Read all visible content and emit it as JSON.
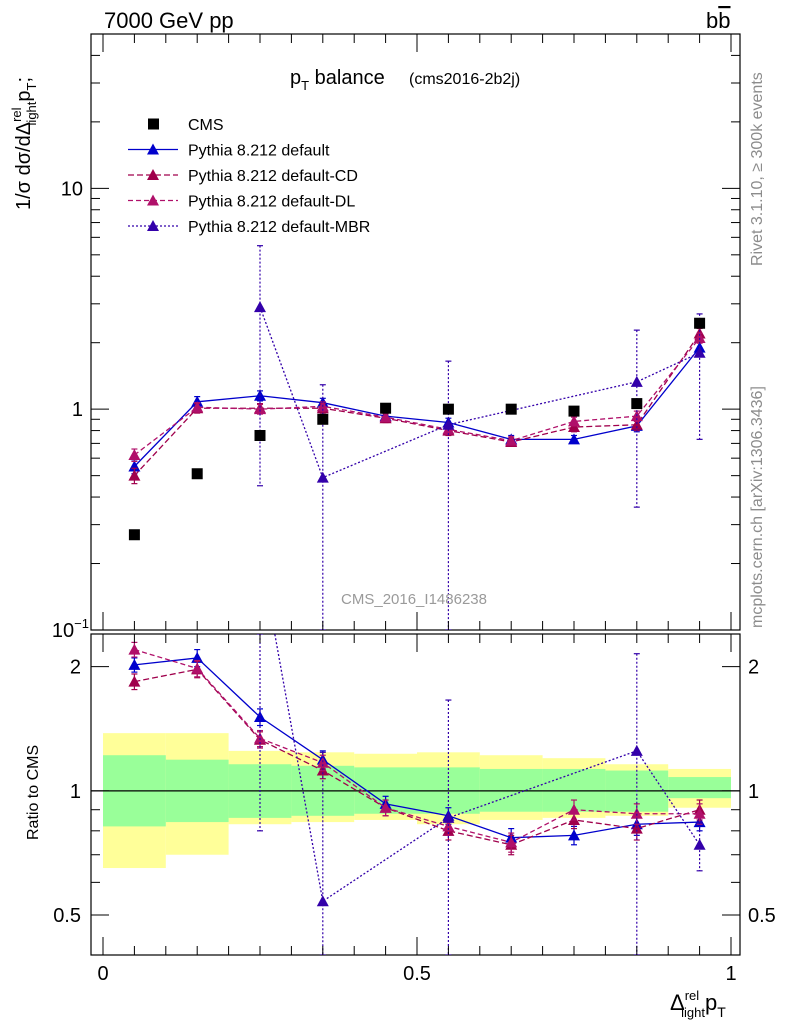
{
  "header": {
    "left_label": "7000 GeV pp",
    "right_label": "b",
    "right_label_bar": "b"
  },
  "side_labels": {
    "rivet": "Rivet 3.1.10, ≥ 300k events",
    "mcplots": "mcplots.cern.ch [arXiv:1306.3436]"
  },
  "analysis_id": "CMS_2016_I1486238",
  "title": {
    "main": "p",
    "main_sub": "T",
    "main_rest": " balance",
    "tag": "(cms2016-2b2j)"
  },
  "ylabel_main": {
    "prefix": "1/σ dσ/dΔ",
    "sup": "rel",
    "sub": "light",
    "p": "p",
    "psub": "T",
    "end": ";"
  },
  "ylabel_ratio": "Ratio to CMS",
  "xlabel": {
    "delta": "Δ",
    "sup": "rel",
    "sub": "light",
    "p": "p",
    "psub": "T"
  },
  "main_ticks": [
    {
      "value": 10,
      "label": "10"
    },
    {
      "value": 1,
      "label": "1"
    },
    {
      "value": 0.1,
      "label": "10",
      "sup": "−1"
    }
  ],
  "ratio_ticks": [
    {
      "value": 2,
      "label": "2"
    },
    {
      "value": 1,
      "label": "1"
    },
    {
      "value": 0.5,
      "label": "0.5"
    }
  ],
  "x_ticks": [
    {
      "value": 0,
      "label": "0"
    },
    {
      "value": 0.5,
      "label": "0.5"
    },
    {
      "value": 1,
      "label": "1"
    }
  ],
  "chart_data": {
    "type": "line",
    "title": "pT balance (cms2016-2b2j)",
    "xlabel": "Δrel_light pT",
    "ylabel": "1/σ dσ/dΔrel_light pT",
    "ratio_ylabel": "Ratio to CMS",
    "xlim": [
      0,
      1
    ],
    "ylim": [
      0.1,
      50
    ],
    "yscale": "log",
    "ratio_ylim": [
      0.4,
      2.4
    ],
    "x": [
      0.05,
      0.15,
      0.25,
      0.35,
      0.45,
      0.55,
      0.65,
      0.75,
      0.85,
      0.95
    ],
    "bin_edges": [
      0,
      0.1,
      0.2,
      0.3,
      0.4,
      0.5,
      0.6,
      0.7,
      0.8,
      0.9,
      1.0
    ],
    "data": {
      "name": "CMS",
      "values": [
        0.27,
        0.51,
        0.76,
        0.9,
        1.01,
        1.0,
        1.0,
        0.98,
        1.06,
        2.45
      ],
      "stat_band": [
        [
          0.82,
          1.22
        ],
        [
          0.84,
          1.19
        ],
        [
          0.86,
          1.16
        ],
        [
          0.87,
          1.15
        ],
        [
          0.88,
          1.14
        ],
        [
          0.88,
          1.14
        ],
        [
          0.89,
          1.13
        ],
        [
          0.89,
          1.13
        ],
        [
          0.89,
          1.12
        ],
        [
          0.96,
          1.08
        ]
      ],
      "total_band": [
        [
          0.65,
          1.38
        ],
        [
          0.7,
          1.38
        ],
        [
          0.83,
          1.25
        ],
        [
          0.84,
          1.24
        ],
        [
          0.85,
          1.23
        ],
        [
          0.83,
          1.24
        ],
        [
          0.85,
          1.22
        ],
        [
          0.86,
          1.2
        ],
        [
          0.87,
          1.16
        ],
        [
          0.91,
          1.13
        ]
      ]
    },
    "series": [
      {
        "name": "Pythia 8.212 default",
        "color": "#0000cc",
        "dash": "",
        "values": [
          0.55,
          1.08,
          1.15,
          1.07,
          0.93,
          0.87,
          0.73,
          0.73,
          0.84,
          1.9
        ],
        "errors": [
          0.04,
          0.06,
          0.06,
          0.05,
          0.04,
          0.04,
          0.03,
          0.03,
          0.05,
          0.1
        ],
        "ratio": [
          2.02,
          2.1,
          1.51,
          1.19,
          0.93,
          0.87,
          0.77,
          0.78,
          0.83,
          0.84
        ],
        "ratio_errors": [
          0.08,
          0.1,
          0.07,
          0.06,
          0.04,
          0.04,
          0.04,
          0.04,
          0.05,
          0.04
        ]
      },
      {
        "name": "Pythia 8.212 default-CD",
        "color": "#a0004c",
        "dash": "6,3",
        "values": [
          0.5,
          1.01,
          1.01,
          1.01,
          0.91,
          0.8,
          0.71,
          0.83,
          0.85,
          2.2
        ],
        "errors": [
          0.04,
          0.05,
          0.05,
          0.05,
          0.04,
          0.04,
          0.03,
          0.04,
          0.05,
          0.12
        ],
        "ratio": [
          1.84,
          1.97,
          1.33,
          1.12,
          0.91,
          0.8,
          0.74,
          0.85,
          0.81,
          0.9
        ],
        "ratio_errors": [
          0.08,
          0.09,
          0.06,
          0.05,
          0.04,
          0.04,
          0.04,
          0.04,
          0.05,
          0.05
        ]
      },
      {
        "name": "Pythia 8.212 default-DL",
        "color": "#b0106a",
        "dash": "5,3",
        "values": [
          0.62,
          1.02,
          1.0,
          1.03,
          0.92,
          0.81,
          0.72,
          0.88,
          0.93,
          2.1
        ],
        "errors": [
          0.04,
          0.05,
          0.05,
          0.05,
          0.04,
          0.04,
          0.03,
          0.04,
          0.05,
          0.11
        ],
        "ratio": [
          2.2,
          1.98,
          1.34,
          1.17,
          0.91,
          0.82,
          0.75,
          0.9,
          0.88,
          0.88
        ],
        "ratio_errors": [
          0.09,
          0.09,
          0.06,
          0.05,
          0.04,
          0.04,
          0.04,
          0.05,
          0.05,
          0.05
        ]
      },
      {
        "name": "Pythia 8.212 default-MBR",
        "color": "#3300aa",
        "dash": "2,2",
        "values": [
          null,
          null,
          2.9,
          0.49,
          null,
          0.85,
          null,
          null,
          1.33,
          1.8
        ],
        "errors_low": [
          null,
          null,
          2.45,
          0.49,
          null,
          0.85,
          null,
          null,
          0.97,
          1.07
        ],
        "errors_high": [
          null,
          null,
          2.6,
          0.8,
          null,
          0.8,
          null,
          null,
          0.95,
          0.9
        ],
        "ratio": [
          null,
          null,
          3.8,
          0.54,
          null,
          0.86,
          null,
          null,
          1.25,
          0.74
        ],
        "ratio_errors_low": [
          null,
          null,
          3.0,
          0.54,
          null,
          0.86,
          null,
          null,
          0.9,
          0.1
        ],
        "ratio_errors_high": [
          null,
          null,
          3.0,
          0.7,
          null,
          0.8,
          null,
          null,
          0.9,
          0.1
        ]
      }
    ],
    "legend": [
      {
        "name": "CMS",
        "marker": "square",
        "color": "#000000"
      },
      {
        "name": "Pythia 8.212 default",
        "marker": "triangle",
        "color": "#0000cc"
      },
      {
        "name": "Pythia 8.212 default-CD",
        "marker": "triangle",
        "color": "#a0004c"
      },
      {
        "name": "Pythia 8.212 default-DL",
        "marker": "triangle",
        "color": "#b0106a"
      },
      {
        "name": "Pythia 8.212 default-MBR",
        "marker": "triangle",
        "color": "#3300aa"
      }
    ],
    "band_colors": {
      "inner": "#99ff99",
      "outer": "#ffff99"
    }
  }
}
